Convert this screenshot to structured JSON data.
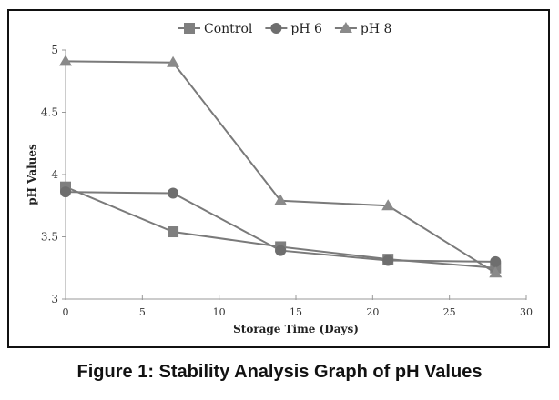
{
  "caption": "Figure 1: Stability Analysis Graph of pH Values",
  "chart_data": {
    "type": "line",
    "title": "",
    "xlabel": "Storage Time (Days)",
    "ylabel": "pH Values",
    "xlim": [
      0,
      30
    ],
    "ylim": [
      3,
      5
    ],
    "xticks": [
      0,
      5,
      10,
      15,
      20,
      25,
      30
    ],
    "yticks": [
      3,
      3.5,
      4,
      4.5,
      5
    ],
    "ytick_labels": [
      "3",
      "3.5",
      "4",
      "4.5",
      "5"
    ],
    "grid": false,
    "legend_position": "top-center",
    "x": [
      0,
      7,
      14,
      21,
      28
    ],
    "series": [
      {
        "name": "Control",
        "marker": "square",
        "color": "#7f7f7f",
        "values": [
          3.9,
          3.54,
          3.42,
          3.32,
          3.25
        ]
      },
      {
        "name": "pH 6",
        "marker": "circle",
        "color": "#6e6e6e",
        "values": [
          3.86,
          3.85,
          3.39,
          3.31,
          3.3
        ]
      },
      {
        "name": "pH 8",
        "marker": "triangle",
        "color": "#8a8a8a",
        "values": [
          4.91,
          4.9,
          3.79,
          3.75,
          3.21
        ]
      }
    ]
  }
}
